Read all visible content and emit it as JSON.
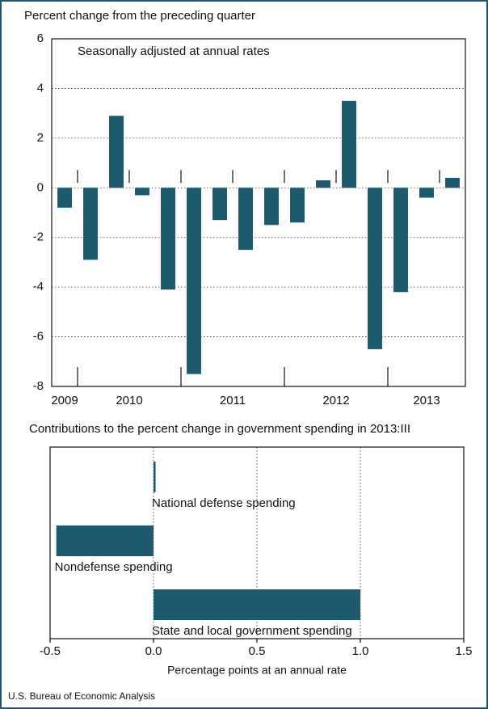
{
  "chart_data": [
    {
      "type": "bar",
      "title": "Percent change from the preceding quarter",
      "subtitle": "Seasonally adjusted at annual rates",
      "categories": [
        null,
        null,
        null,
        null,
        null,
        null,
        null,
        null,
        null,
        null,
        null,
        null,
        null,
        null,
        null,
        null
      ],
      "year_labels": [
        "2009",
        "2010",
        "2011",
        "2012",
        "2013"
      ],
      "values": [
        -0.8,
        -2.9,
        2.9,
        -0.3,
        -4.1,
        -7.5,
        -1.3,
        -2.5,
        -1.5,
        -1.4,
        0.3,
        3.5,
        -6.5,
        -4.2,
        -0.4,
        0.4
      ],
      "color": "#1e5a6e",
      "ylim": [
        -8,
        6
      ],
      "yticks": [
        -8,
        -6,
        -4,
        -2,
        0,
        2,
        4,
        6
      ],
      "grid": true
    },
    {
      "type": "hbar",
      "title": "Contributions to the percent change in government spending in 2013:III",
      "categories": [
        "National defense spending",
        "Nondefense spending",
        "State and local government spending"
      ],
      "values": [
        0.01,
        -0.47,
        1.0
      ],
      "color": "#1e5a6e",
      "xlabel": "Percentage points at an annual rate",
      "xlim": [
        -0.5,
        1.5
      ],
      "xticks": [
        -0.5,
        {
          "value": 0,
          "label": "0.0"
        },
        0.5,
        {
          "value": 1,
          "label": "1.0"
        },
        1.5
      ],
      "grid": true
    }
  ],
  "source": "U.S. Bureau of Economic Analysis"
}
